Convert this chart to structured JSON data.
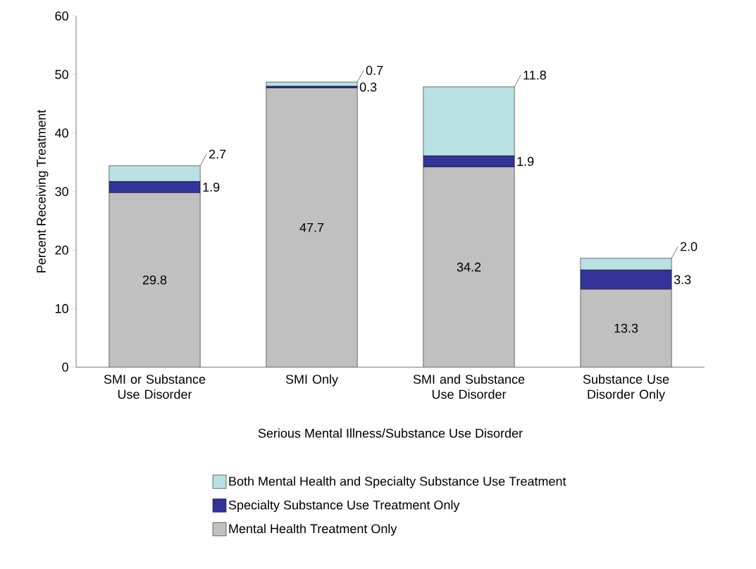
{
  "chart_data": {
    "type": "bar",
    "stacked": true,
    "categories": [
      "SMI or Substance Use Disorder",
      "SMI Only",
      "SMI and Substance Use Disorder",
      "Substance Use Disorder Only"
    ],
    "series": [
      {
        "name": "Mental Health Treatment Only",
        "color": "#c0c0c0",
        "values": [
          29.8,
          47.7,
          34.2,
          13.3
        ],
        "value_labels": [
          "29.8",
          "47.7",
          "34.2",
          "13.3"
        ]
      },
      {
        "name": "Specialty Substance Use Treatment Only",
        "color": "#333399",
        "values": [
          1.9,
          0.3,
          1.9,
          3.3
        ],
        "value_labels": [
          "1.9",
          "0.3",
          "1.9",
          "3.3"
        ]
      },
      {
        "name": "Both Mental Health and Specialty Substance Use Treatment",
        "color": "#b9e0e2",
        "values": [
          2.7,
          0.7,
          11.8,
          2.0
        ],
        "value_labels": [
          "2.7",
          "0.7",
          "11.8",
          "2.0"
        ]
      }
    ],
    "xlabel": "Serious Mental Illness/Substance Use Disorder",
    "ylabel": "Percent Receiving Treatment",
    "ylim": [
      0,
      60
    ],
    "yticks": [
      0,
      10,
      20,
      30,
      40,
      50,
      60
    ],
    "legend": "bottom",
    "grid": false
  }
}
